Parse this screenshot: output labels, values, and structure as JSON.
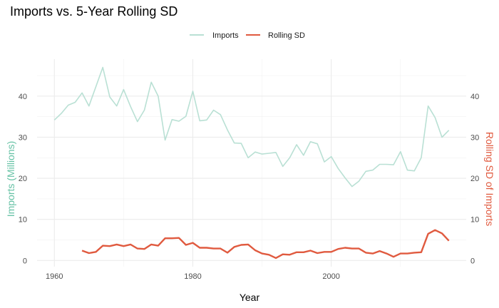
{
  "chart_data": {
    "type": "line",
    "title": "Imports vs. 5-Year Rolling SD",
    "xlabel": "Year",
    "ylabel_left": "Imports (Millions)",
    "ylabel_right": "Rolling SD of Imports",
    "xlim": [
      1957.5,
      2019.5
    ],
    "ylim": [
      -1.5,
      49
    ],
    "x_ticks": [
      1960,
      1980,
      2000
    ],
    "y_ticks": [
      0,
      10,
      20,
      30,
      40
    ],
    "grid": true,
    "legend_position": "top",
    "colors": {
      "imports": "#b9e0d4",
      "rolling_sd": "#e05a3f",
      "left_axis_title": "#66c2a5",
      "right_axis_title": "#e05a3f"
    },
    "series": [
      {
        "name": "Imports",
        "x": [
          1960,
          1961,
          1962,
          1963,
          1964,
          1965,
          1966,
          1967,
          1968,
          1969,
          1970,
          1971,
          1972,
          1973,
          1974,
          1975,
          1976,
          1977,
          1978,
          1979,
          1980,
          1981,
          1982,
          1983,
          1984,
          1985,
          1986,
          1987,
          1988,
          1989,
          1990,
          1991,
          1992,
          1993,
          1994,
          1995,
          1996,
          1997,
          1998,
          1999,
          2000,
          2001,
          2002,
          2003,
          2004,
          2005,
          2006,
          2007,
          2008,
          2009,
          2010,
          2011,
          2012,
          2013,
          2014,
          2015,
          2016,
          2017
        ],
        "values": [
          34.2,
          35.8,
          37.8,
          38.5,
          40.8,
          37.6,
          42.3,
          47.0,
          39.8,
          37.6,
          41.6,
          37.5,
          33.8,
          36.6,
          43.4,
          40.0,
          29.3,
          34.3,
          33.9,
          35.1,
          41.2,
          34.0,
          34.2,
          36.6,
          35.5,
          31.8,
          28.6,
          28.5,
          25.0,
          26.4,
          25.9,
          26.1,
          26.3,
          22.9,
          25.0,
          28.2,
          25.6,
          28.9,
          28.4,
          24.0,
          25.3,
          22.4,
          20.1,
          18.0,
          19.3,
          21.7,
          22.0,
          23.4,
          23.4,
          23.3,
          26.5,
          22.0,
          21.8,
          25.0,
          37.6,
          34.8,
          30.0,
          31.7
        ]
      },
      {
        "name": "Rolling SD",
        "x": [
          1964,
          1965,
          1966,
          1967,
          1968,
          1969,
          1970,
          1971,
          1972,
          1973,
          1974,
          1975,
          1976,
          1977,
          1978,
          1979,
          1980,
          1981,
          1982,
          1983,
          1984,
          1985,
          1986,
          1987,
          1988,
          1989,
          1990,
          1991,
          1992,
          1993,
          1994,
          1995,
          1996,
          1997,
          1998,
          1999,
          2000,
          2001,
          2002,
          2003,
          2004,
          2005,
          2006,
          2007,
          2008,
          2009,
          2010,
          2011,
          2012,
          2013,
          2014,
          2015,
          2016,
          2017
        ],
        "values": [
          2.4,
          1.8,
          2.1,
          3.6,
          3.5,
          3.9,
          3.5,
          3.9,
          2.9,
          2.8,
          3.9,
          3.6,
          5.4,
          5.4,
          5.5,
          3.8,
          4.3,
          3.1,
          3.1,
          2.9,
          2.9,
          1.9,
          3.3,
          3.8,
          3.9,
          2.5,
          1.7,
          1.4,
          0.6,
          1.5,
          1.4,
          2.0,
          2.0,
          2.4,
          1.8,
          2.1,
          2.1,
          2.8,
          3.1,
          2.9,
          2.9,
          1.9,
          1.7,
          2.3,
          1.7,
          0.9,
          1.7,
          1.7,
          1.9,
          2.0,
          6.5,
          7.4,
          6.6,
          4.8
        ]
      }
    ]
  }
}
